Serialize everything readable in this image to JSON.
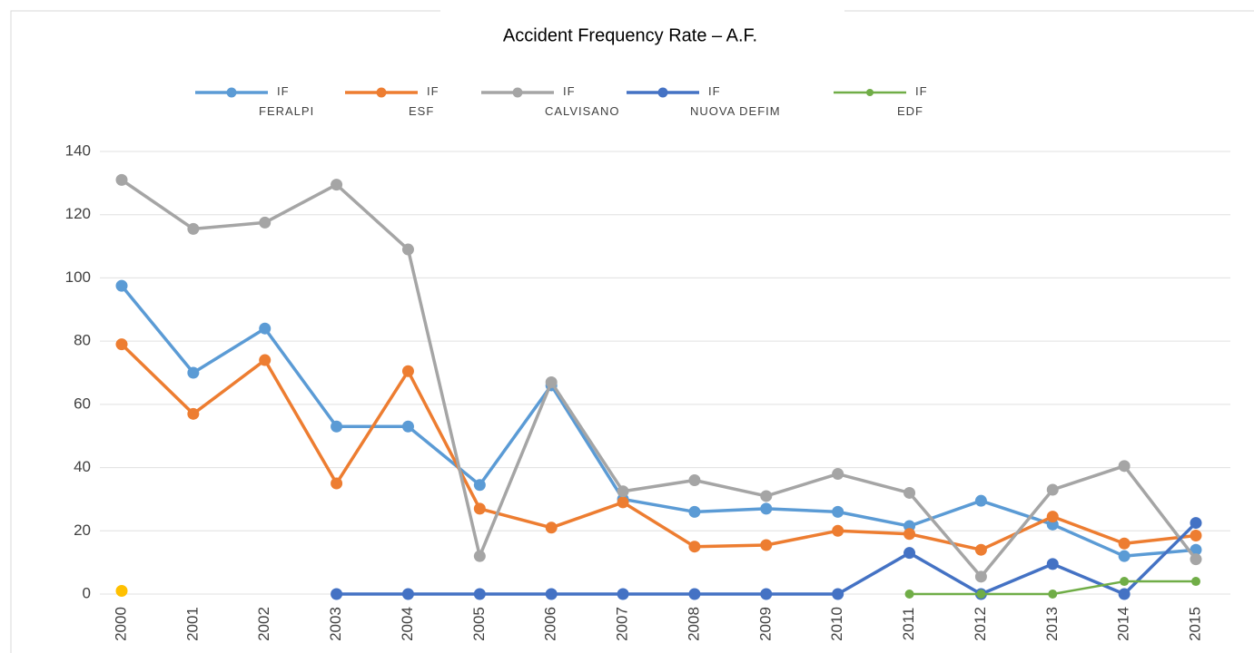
{
  "chart_data": {
    "type": "line",
    "title": "Accident Frequency Rate – A.F.",
    "categories": [
      "2000",
      "2001",
      "2002",
      "2003",
      "2004",
      "2005",
      "2006",
      "2007",
      "2008",
      "2009",
      "2010",
      "2011",
      "2012",
      "2013",
      "2014",
      "2015"
    ],
    "series": [
      {
        "name": "IF FERALPI",
        "color": "#5b9bd5",
        "values": [
          97.5,
          70,
          84,
          53,
          53,
          34.5,
          66,
          30,
          26,
          27,
          26,
          21.5,
          29.5,
          22,
          12,
          14
        ]
      },
      {
        "name": "IF ESF",
        "color": "#ed7d31",
        "values": [
          79,
          57,
          74,
          35,
          70.5,
          27,
          21,
          29,
          15,
          15.5,
          20,
          19,
          14,
          24.5,
          16,
          18.5
        ]
      },
      {
        "name": "IF CALVISANO",
        "color": "#a5a5a5",
        "values": [
          131,
          115.5,
          117.5,
          129.5,
          109,
          12,
          67,
          32.5,
          36,
          31,
          38,
          32,
          5.5,
          33,
          40.5,
          11
        ]
      },
      {
        "name": "IF NUOVA DEFIM",
        "color": "#4472c4",
        "values": [
          null,
          null,
          null,
          0,
          0,
          0,
          0,
          0,
          0,
          0,
          0,
          13,
          0,
          9.5,
          0,
          22.5
        ]
      },
      {
        "name": "IF EDF",
        "color": "#70ad47",
        "values": [
          null,
          null,
          null,
          null,
          null,
          null,
          null,
          null,
          null,
          null,
          null,
          0,
          0,
          0,
          4,
          4
        ]
      },
      {
        "color": "#ffc000",
        "values": [
          1,
          null,
          null,
          null,
          null,
          null,
          null,
          null,
          null,
          null,
          null,
          null,
          null,
          null,
          null,
          null
        ]
      }
    ],
    "ylim": [
      0,
      140
    ],
    "yticks": [
      0,
      20,
      40,
      60,
      80,
      100,
      120,
      140
    ],
    "grid": true
  }
}
